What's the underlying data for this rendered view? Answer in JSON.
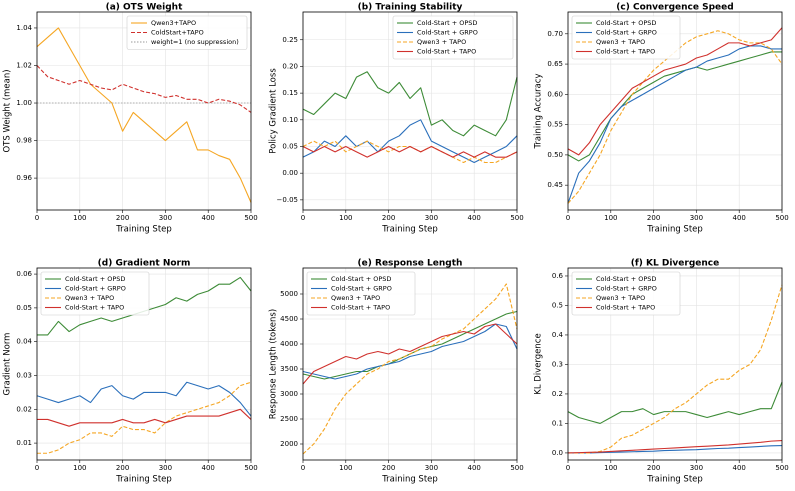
{
  "chart_data": [
    {
      "type": "line",
      "title": "(a) OTS Weight",
      "xlabel": "Training Step",
      "ylabel": "OTS Weight (mean)",
      "x": [
        0,
        25,
        50,
        75,
        100,
        125,
        150,
        175,
        200,
        225,
        250,
        275,
        300,
        325,
        350,
        375,
        400,
        425,
        450,
        475,
        500
      ],
      "xlim": [
        0,
        500
      ],
      "xticks": [
        0,
        100,
        200,
        300,
        400,
        500
      ],
      "ylim": [
        0.943,
        1.0485
      ],
      "yticks": [
        0.96,
        0.98,
        {
          "value": 1,
          "label": "1.00"
        },
        1.02,
        1.04
      ],
      "grid": true,
      "legend": "upper right",
      "series": [
        {
          "name": "Qwen3+TAPO",
          "color": "#f5a623",
          "linestyle": "solid",
          "values": [
            1.03,
            1.035,
            1.04,
            1.03,
            1.02,
            1.01,
            1.005,
            1.0,
            0.985,
            0.995,
            0.99,
            0.985,
            0.98,
            0.985,
            0.99,
            0.975,
            0.975,
            0.972,
            0.97,
            0.96,
            0.947
          ]
        },
        {
          "name": "ColdStart+TAPO",
          "color": "#d0312d",
          "linestyle": "dashed",
          "values": [
            1.02,
            1.014,
            1.012,
            1.01,
            1.012,
            1.01,
            1.008,
            1.007,
            1.01,
            1.008,
            1.006,
            1.005,
            1.003,
            1.004,
            1.002,
            1.002,
            1.0,
            1.002,
            1.001,
            0.999,
            0.995
          ]
        }
      ],
      "reference_line": {
        "name": "weight=1 (no suppression)",
        "value": 1,
        "color": "#999999",
        "linestyle": "dotted"
      }
    },
    {
      "type": "line",
      "title": "(b) Training Stability",
      "xlabel": "Training Step",
      "ylabel": "Policy Gradient Loss",
      "x": [
        0,
        25,
        50,
        75,
        100,
        125,
        150,
        175,
        200,
        225,
        250,
        275,
        300,
        325,
        350,
        375,
        400,
        425,
        450,
        475,
        500
      ],
      "xlim": [
        0,
        500
      ],
      "xticks": [
        0,
        100,
        200,
        300,
        400,
        500
      ],
      "ylim": [
        -0.069,
        0.302
      ],
      "yticks": [
        {
          "value": -0.05,
          "label": "−0.05"
        },
        {
          "value": 0,
          "label": "0.00"
        },
        0.05,
        {
          "value": 0.1,
          "label": "0.10"
        },
        0.15,
        {
          "value": 0.2,
          "label": "0.20"
        },
        0.25
      ],
      "grid": true,
      "legend": "upper right",
      "series": [
        {
          "name": "Cold-Start + OPSD",
          "color": "#3d8b37",
          "linestyle": "solid",
          "values": [
            0.12,
            0.11,
            0.13,
            0.15,
            0.14,
            0.18,
            0.19,
            0.16,
            0.15,
            0.17,
            0.14,
            0.16,
            0.09,
            0.1,
            0.08,
            0.07,
            0.09,
            0.08,
            0.07,
            0.1,
            0.18
          ]
        },
        {
          "name": "Cold-Start + GRPO",
          "color": "#2a6fbb",
          "linestyle": "solid",
          "values": [
            0.03,
            0.04,
            0.06,
            0.05,
            0.07,
            0.05,
            0.06,
            0.04,
            0.06,
            0.07,
            0.09,
            0.1,
            0.06,
            0.05,
            0.04,
            0.03,
            0.02,
            0.03,
            0.04,
            0.05,
            0.07
          ]
        },
        {
          "name": "Qwen3 + TAPO",
          "color": "#f5a623",
          "linestyle": "dashed",
          "values": [
            0.05,
            0.06,
            0.05,
            0.06,
            0.04,
            0.05,
            0.06,
            0.05,
            0.04,
            0.05,
            0.05,
            0.04,
            0.05,
            0.04,
            0.03,
            0.02,
            0.03,
            0.02,
            0.02,
            0.03,
            0.04
          ]
        },
        {
          "name": "Cold-Start + TAPO",
          "color": "#d0312d",
          "linestyle": "solid",
          "values": [
            0.05,
            0.04,
            0.05,
            0.04,
            0.05,
            0.04,
            0.03,
            0.04,
            0.05,
            0.04,
            0.05,
            0.04,
            0.05,
            0.04,
            0.03,
            0.04,
            0.03,
            0.04,
            0.03,
            0.03,
            0.04
          ]
        }
      ]
    },
    {
      "type": "line",
      "title": "(c) Convergence Speed",
      "xlabel": "Training Step",
      "ylabel": "Training Accuracy",
      "x": [
        0,
        25,
        50,
        75,
        100,
        125,
        150,
        175,
        200,
        225,
        250,
        275,
        300,
        325,
        350,
        375,
        400,
        425,
        450,
        475,
        500
      ],
      "xlim": [
        0,
        500
      ],
      "xticks": [
        0,
        100,
        200,
        300,
        400,
        500
      ],
      "ylim": [
        0.409,
        0.736
      ],
      "yticks": [
        0.45,
        {
          "value": 0.5,
          "label": "0.50"
        },
        0.55,
        {
          "value": 0.6,
          "label": "0.60"
        },
        0.65,
        {
          "value": 0.7,
          "label": "0.70"
        }
      ],
      "grid": true,
      "legend": "upper left",
      "series": [
        {
          "name": "Cold-Start + OPSD",
          "color": "#3d8b37",
          "linestyle": "solid",
          "values": [
            0.5,
            0.49,
            0.5,
            0.53,
            0.56,
            0.58,
            0.6,
            0.61,
            0.62,
            0.63,
            0.635,
            0.64,
            0.645,
            0.64,
            0.645,
            0.65,
            0.655,
            0.66,
            0.665,
            0.67,
            0.67
          ]
        },
        {
          "name": "Cold-Start + GRPO",
          "color": "#2a6fbb",
          "linestyle": "solid",
          "values": [
            0.42,
            0.47,
            0.49,
            0.52,
            0.56,
            0.58,
            0.59,
            0.6,
            0.61,
            0.62,
            0.63,
            0.64,
            0.645,
            0.655,
            0.66,
            0.665,
            0.675,
            0.68,
            0.68,
            0.675,
            0.675
          ]
        },
        {
          "name": "Qwen3 + TAPO",
          "color": "#f5a623",
          "linestyle": "dashed",
          "values": [
            0.42,
            0.44,
            0.47,
            0.5,
            0.54,
            0.57,
            0.6,
            0.62,
            0.64,
            0.655,
            0.67,
            0.685,
            0.695,
            0.7,
            0.705,
            0.7,
            0.69,
            0.685,
            0.685,
            0.675,
            0.65
          ]
        },
        {
          "name": "Cold-Start + TAPO",
          "color": "#d0312d",
          "linestyle": "solid",
          "values": [
            0.51,
            0.5,
            0.52,
            0.55,
            0.57,
            0.59,
            0.61,
            0.62,
            0.63,
            0.64,
            0.645,
            0.65,
            0.66,
            0.665,
            0.675,
            0.685,
            0.685,
            0.68,
            0.685,
            0.69,
            0.71
          ]
        }
      ]
    },
    {
      "type": "line",
      "title": "(d) Gradient Norm",
      "xlabel": "Training Step",
      "ylabel": "Gradient Norm",
      "x": [
        0,
        25,
        50,
        75,
        100,
        125,
        150,
        175,
        200,
        225,
        250,
        275,
        300,
        325,
        350,
        375,
        400,
        425,
        450,
        475,
        500
      ],
      "xlim": [
        0,
        500
      ],
      "xticks": [
        0,
        100,
        200,
        300,
        400,
        500
      ],
      "ylim": [
        0.005,
        0.0618
      ],
      "yticks": [
        0.01,
        0.02,
        0.03,
        0.04,
        0.05,
        0.06
      ],
      "grid": true,
      "legend": "upper left",
      "series": [
        {
          "name": "Cold-Start + OPSD",
          "color": "#3d8b37",
          "linestyle": "solid",
          "values": [
            0.042,
            0.042,
            0.046,
            0.043,
            0.045,
            0.046,
            0.047,
            0.046,
            0.047,
            0.048,
            0.049,
            0.05,
            0.051,
            0.053,
            0.052,
            0.054,
            0.055,
            0.057,
            0.057,
            0.059,
            0.055
          ]
        },
        {
          "name": "Cold-Start + GRPO",
          "color": "#2a6fbb",
          "linestyle": "solid",
          "values": [
            0.024,
            0.023,
            0.022,
            0.023,
            0.024,
            0.022,
            0.026,
            0.027,
            0.024,
            0.023,
            0.025,
            0.025,
            0.025,
            0.024,
            0.028,
            0.027,
            0.026,
            0.027,
            0.025,
            0.022,
            0.018
          ]
        },
        {
          "name": "Qwen3 + TAPO",
          "color": "#f5a623",
          "linestyle": "dashed",
          "values": [
            0.007,
            0.007,
            0.008,
            0.01,
            0.011,
            0.013,
            0.013,
            0.012,
            0.015,
            0.014,
            0.014,
            0.013,
            0.016,
            0.018,
            0.019,
            0.02,
            0.021,
            0.022,
            0.024,
            0.027,
            0.028
          ]
        },
        {
          "name": "Cold-Start + TAPO",
          "color": "#d0312d",
          "linestyle": "solid",
          "values": [
            0.017,
            0.017,
            0.016,
            0.015,
            0.016,
            0.016,
            0.016,
            0.016,
            0.017,
            0.016,
            0.016,
            0.017,
            0.016,
            0.017,
            0.018,
            0.018,
            0.018,
            0.018,
            0.019,
            0.02,
            0.017
          ]
        }
      ]
    },
    {
      "type": "line",
      "title": "(e) Response Length",
      "xlabel": "Training Step",
      "ylabel": "Response Length (tokens)",
      "x": [
        0,
        25,
        50,
        75,
        100,
        125,
        150,
        175,
        200,
        225,
        250,
        275,
        300,
        325,
        350,
        375,
        400,
        425,
        450,
        475,
        500
      ],
      "xlim": [
        0,
        500
      ],
      "xticks": [
        0,
        100,
        200,
        300,
        400,
        500
      ],
      "ylim": [
        1680,
        5520
      ],
      "yticks": [
        2000,
        2500,
        3000,
        3500,
        4000,
        4500,
        5000
      ],
      "grid": true,
      "legend": "upper left",
      "series": [
        {
          "name": "Cold-Start + OPSD",
          "color": "#3d8b37",
          "linestyle": "solid",
          "values": [
            3400,
            3350,
            3300,
            3350,
            3400,
            3450,
            3450,
            3550,
            3600,
            3700,
            3800,
            3900,
            3950,
            4000,
            4100,
            4200,
            4300,
            4400,
            4500,
            4600,
            4650
          ]
        },
        {
          "name": "Cold-Start + GRPO",
          "color": "#2a6fbb",
          "linestyle": "solid",
          "values": [
            3450,
            3400,
            3350,
            3300,
            3350,
            3400,
            3500,
            3550,
            3600,
            3650,
            3750,
            3800,
            3850,
            3950,
            4000,
            4050,
            4150,
            4250,
            4400,
            4350,
            3900
          ]
        },
        {
          "name": "Qwen3 + TAPO",
          "color": "#f5a623",
          "linestyle": "dashed",
          "values": [
            1800,
            2000,
            2300,
            2700,
            3000,
            3200,
            3400,
            3500,
            3650,
            3700,
            3800,
            3900,
            3950,
            4100,
            4200,
            4300,
            4500,
            4700,
            4900,
            5200,
            4300
          ]
        },
        {
          "name": "Cold-Start + TAPO",
          "color": "#d0312d",
          "linestyle": "solid",
          "values": [
            3200,
            3450,
            3550,
            3650,
            3750,
            3700,
            3800,
            3850,
            3800,
            3900,
            3850,
            3950,
            4050,
            4150,
            4200,
            4250,
            4200,
            4350,
            4400,
            4200,
            4000
          ]
        }
      ]
    },
    {
      "type": "line",
      "title": "(f) KL Divergence",
      "xlabel": "Training Step",
      "ylabel": "KL Divergence",
      "x": [
        0,
        25,
        50,
        75,
        100,
        125,
        150,
        175,
        200,
        225,
        250,
        275,
        300,
        325,
        350,
        375,
        400,
        425,
        450,
        475,
        500
      ],
      "xlim": [
        0,
        500
      ],
      "xticks": [
        0,
        100,
        200,
        300,
        400,
        500
      ],
      "ylim": [
        -0.024,
        0.627
      ],
      "yticks": [
        {
          "value": 0,
          "label": "0.0"
        },
        0.1,
        0.2,
        0.3,
        0.4,
        0.5,
        0.6
      ],
      "grid": true,
      "legend": "upper left",
      "series": [
        {
          "name": "Cold-Start + OPSD",
          "color": "#3d8b37",
          "linestyle": "solid",
          "values": [
            0.14,
            0.12,
            0.11,
            0.1,
            0.12,
            0.14,
            0.14,
            0.15,
            0.13,
            0.14,
            0.14,
            0.14,
            0.13,
            0.12,
            0.13,
            0.14,
            0.13,
            0.14,
            0.15,
            0.15,
            0.24
          ]
        },
        {
          "name": "Cold-Start + GRPO",
          "color": "#2a6fbb",
          "linestyle": "solid",
          "values": [
            0,
            0,
            0,
            0.001,
            0.002,
            0.003,
            0.004,
            0.005,
            0.006,
            0.008,
            0.009,
            0.01,
            0.011,
            0.013,
            0.015,
            0.016,
            0.018,
            0.02,
            0.022,
            0.024,
            0.025
          ]
        },
        {
          "name": "Qwen3 + TAPO",
          "color": "#f5a623",
          "linestyle": "dashed",
          "values": [
            0,
            0,
            0,
            0.005,
            0.02,
            0.05,
            0.06,
            0.08,
            0.1,
            0.12,
            0.15,
            0.17,
            0.2,
            0.23,
            0.25,
            0.25,
            0.28,
            0.3,
            0.35,
            0.45,
            0.57
          ]
        },
        {
          "name": "Cold-Start + TAPO",
          "color": "#d0312d",
          "linestyle": "solid",
          "values": [
            0,
            0.001,
            0.002,
            0.003,
            0.005,
            0.007,
            0.009,
            0.011,
            0.013,
            0.015,
            0.017,
            0.019,
            0.021,
            0.023,
            0.025,
            0.027,
            0.03,
            0.033,
            0.036,
            0.04,
            0.042
          ]
        }
      ]
    }
  ]
}
